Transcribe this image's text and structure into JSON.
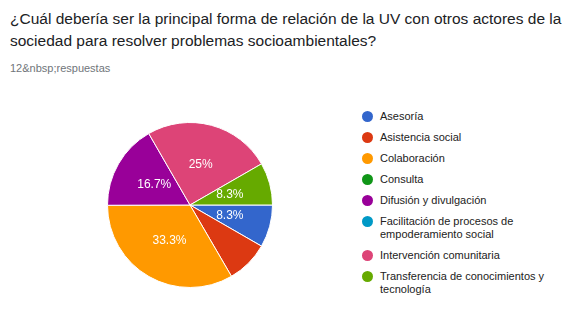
{
  "chart_data": {
    "type": "pie",
    "title": "¿Cuál debería ser la principal forma de relación de la UV con otros actores de la sociedad para resolver problemas socioambientales?",
    "subtitle": "12&nbsp;respuestas",
    "categories": [
      "Asesoría",
      "Asistencia social",
      "Colaboración",
      "Consulta",
      "Difusión y divulgación",
      "Facilitación de procesos de empoderamiento social",
      "Intervención comunitaria",
      "Transferencia de conocimientos y tecnología"
    ],
    "values": [
      8.3,
      8.3,
      33.3,
      0,
      16.7,
      0,
      25,
      8.3
    ],
    "value_labels": [
      "8.3%",
      null,
      "33.3%",
      null,
      "16.7%",
      null,
      "25%",
      "8.3%"
    ],
    "colors": [
      "#3366cc",
      "#dc3912",
      "#ff9900",
      "#109618",
      "#990099",
      "#0099c6",
      "#dd4477",
      "#66aa00"
    ],
    "data_labels": true,
    "legend": "right"
  }
}
